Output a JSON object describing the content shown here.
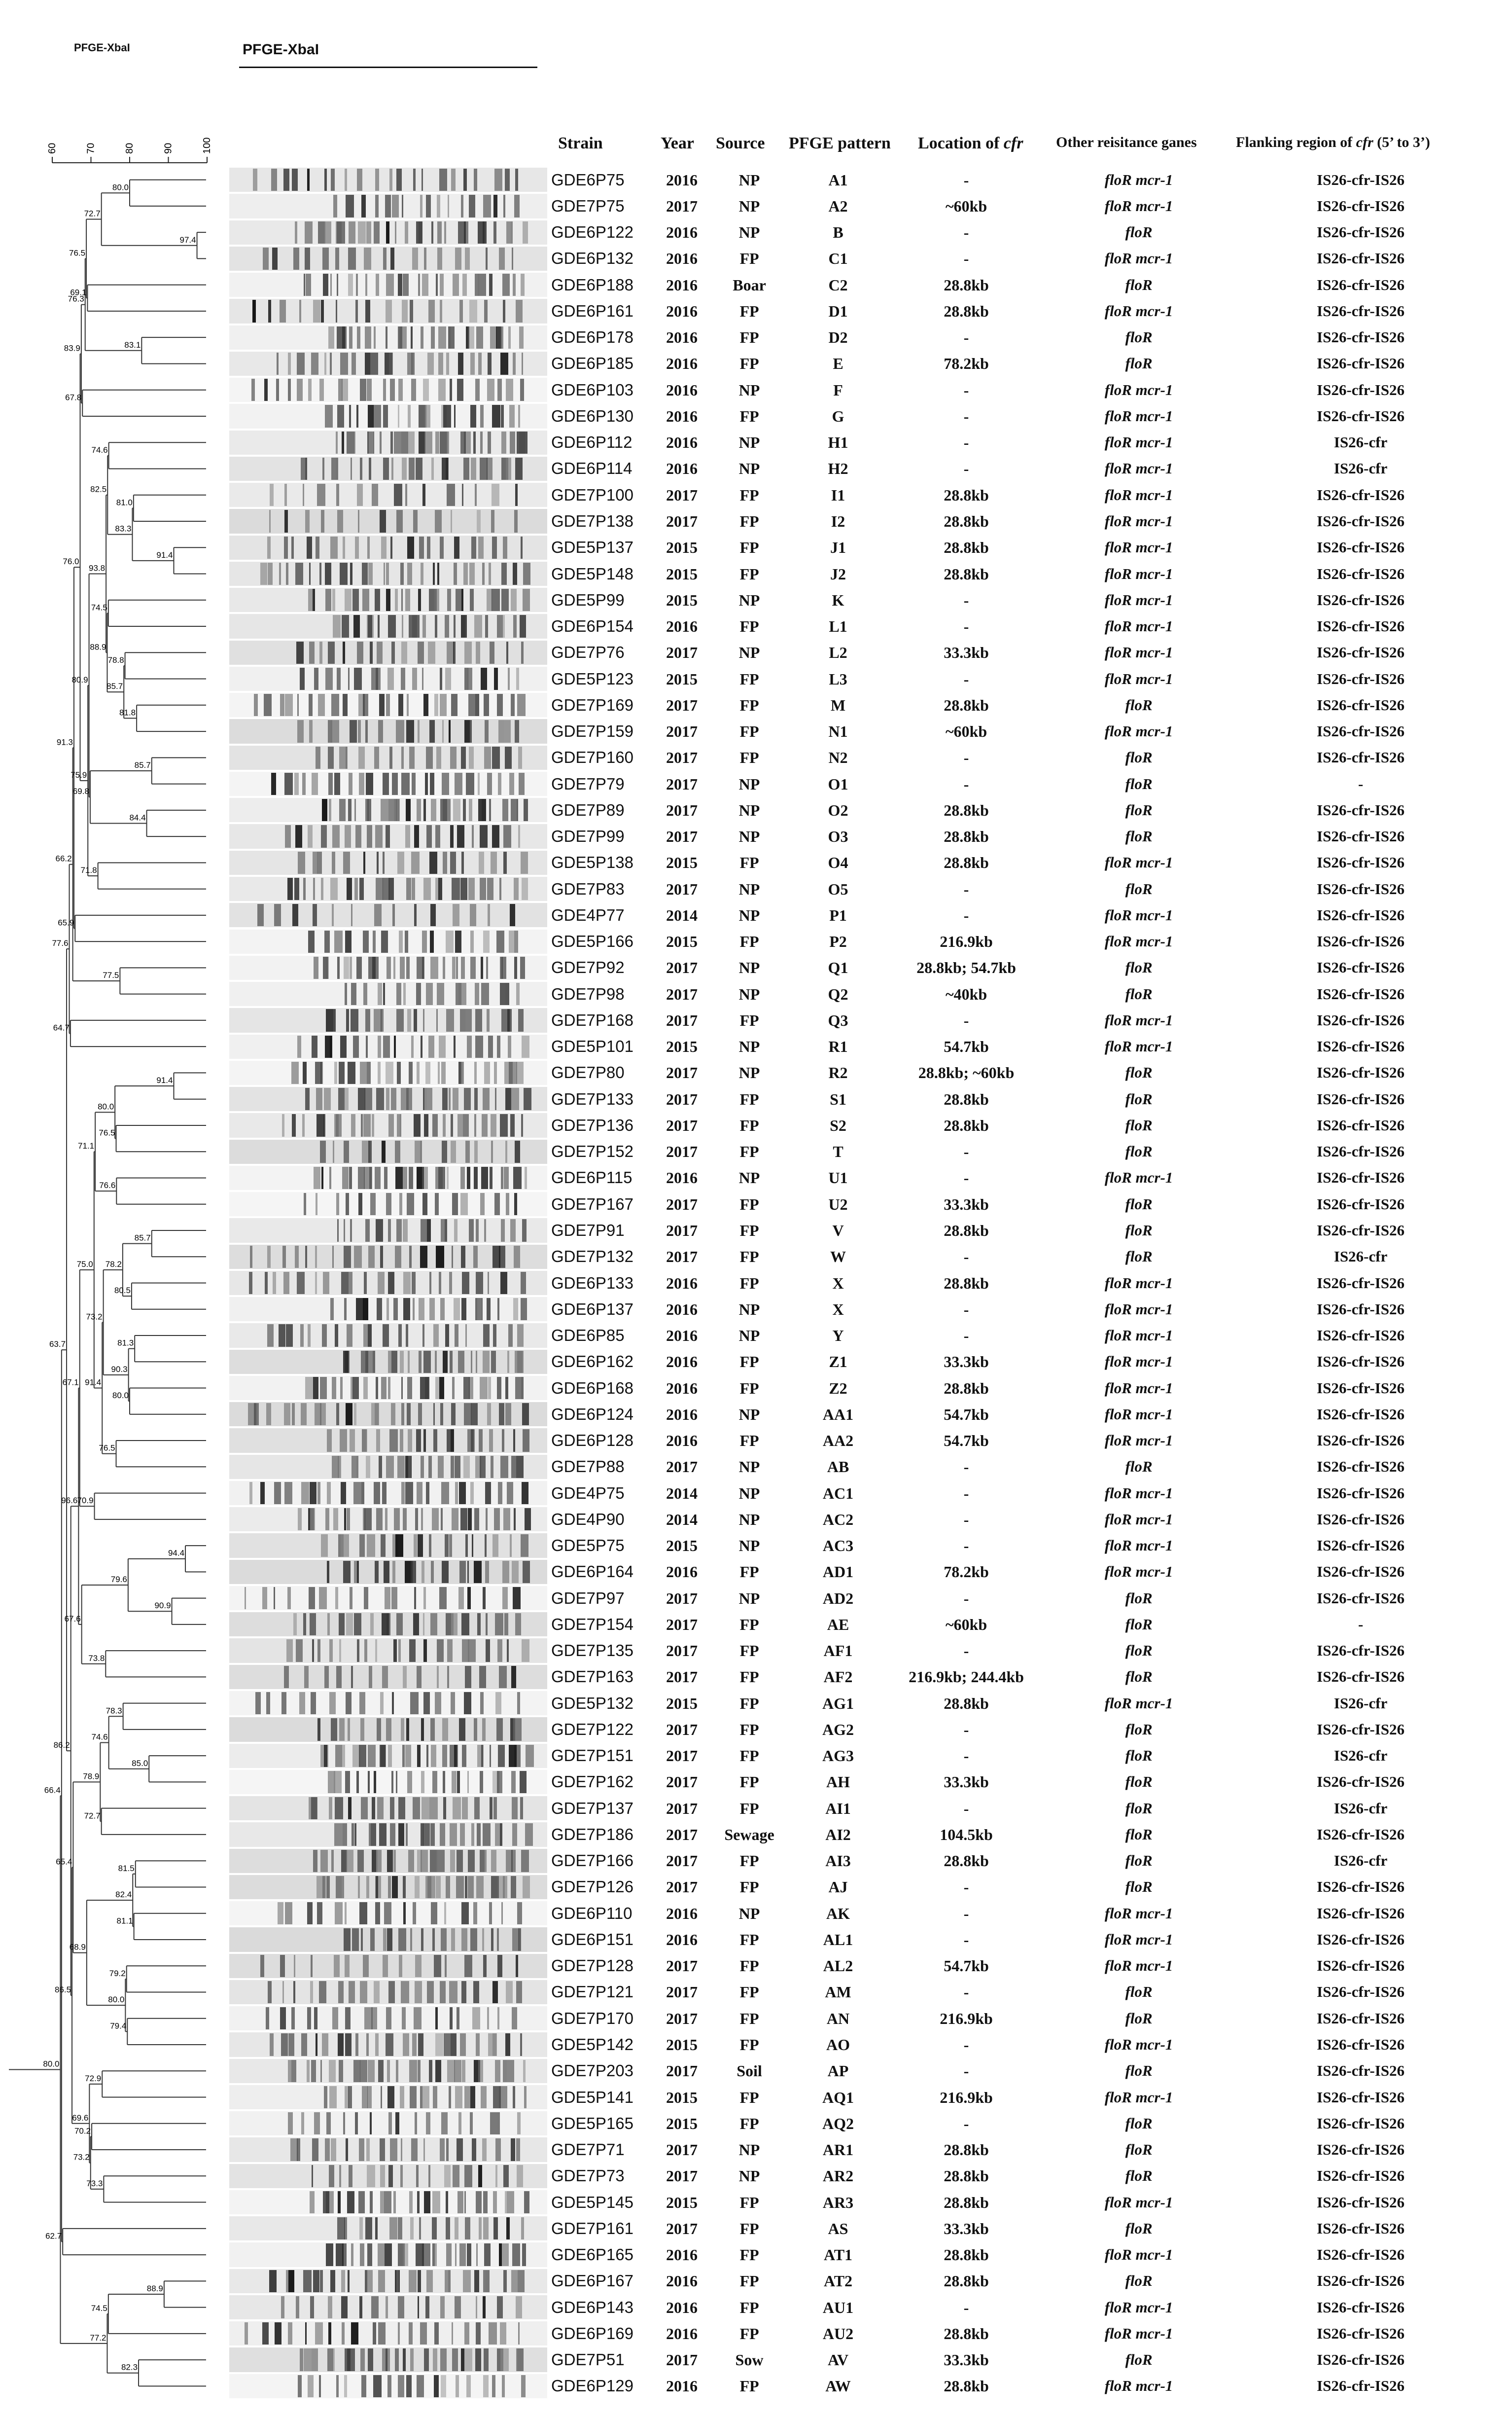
{
  "labels": {
    "top_left": "PFGE-XbaI",
    "top_title": "PFGE-XbaI"
  },
  "scale": {
    "ticks": [
      "60",
      "70",
      "80",
      "90",
      "100"
    ]
  },
  "headers": {
    "strain": "Strain",
    "year": "Year",
    "source": "Source",
    "pattern": "PFGE pattern",
    "location": "Location of ",
    "location_em": "cfr",
    "resistance": "Other reisitance ganes",
    "flank": "Flanking region of ",
    "flank_em": "cfr",
    "flank_tail": " (5’ to 3’)"
  },
  "rows": [
    {
      "strain": "GDE6P75",
      "year": "2016",
      "source": "NP",
      "pattern": "A1",
      "location": "-",
      "resistance": "floR mcr-1",
      "flank": "IS26-cfr-IS26"
    },
    {
      "strain": "GDE7P75",
      "year": "2017",
      "source": "NP",
      "pattern": "A2",
      "location": "~60kb",
      "resistance": "floR mcr-1",
      "flank": "IS26-cfr-IS26"
    },
    {
      "strain": "GDE6P122",
      "year": "2016",
      "source": "NP",
      "pattern": "B",
      "location": "-",
      "resistance": "floR",
      "flank": "IS26-cfr-IS26"
    },
    {
      "strain": "GDE6P132",
      "year": "2016",
      "source": "FP",
      "pattern": "C1",
      "location": "-",
      "resistance": "floR mcr-1",
      "flank": "IS26-cfr-IS26"
    },
    {
      "strain": "GDE6P188",
      "year": "2016",
      "source": "Boar",
      "pattern": "C2",
      "location": "28.8kb",
      "resistance": "floR",
      "flank": "IS26-cfr-IS26"
    },
    {
      "strain": "GDE6P161",
      "year": "2016",
      "source": "FP",
      "pattern": "D1",
      "location": "28.8kb",
      "resistance": "floR mcr-1",
      "flank": "IS26-cfr-IS26"
    },
    {
      "strain": "GDE6P178",
      "year": "2016",
      "source": "FP",
      "pattern": "D2",
      "location": "-",
      "resistance": "floR",
      "flank": "IS26-cfr-IS26"
    },
    {
      "strain": "GDE6P185",
      "year": "2016",
      "source": "FP",
      "pattern": "E",
      "location": "78.2kb",
      "resistance": "floR",
      "flank": "IS26-cfr-IS26"
    },
    {
      "strain": "GDE6P103",
      "year": "2016",
      "source": "NP",
      "pattern": "F",
      "location": "-",
      "resistance": "floR mcr-1",
      "flank": "IS26-cfr-IS26"
    },
    {
      "strain": "GDE6P130",
      "year": "2016",
      "source": "FP",
      "pattern": "G",
      "location": "-",
      "resistance": "floR mcr-1",
      "flank": "IS26-cfr-IS26"
    },
    {
      "strain": "GDE6P112",
      "year": "2016",
      "source": "NP",
      "pattern": "H1",
      "location": "-",
      "resistance": "floR mcr-1",
      "flank": "IS26-cfr"
    },
    {
      "strain": "GDE6P114",
      "year": "2016",
      "source": "NP",
      "pattern": "H2",
      "location": "-",
      "resistance": "floR mcr-1",
      "flank": "IS26-cfr"
    },
    {
      "strain": "GDE7P100",
      "year": "2017",
      "source": "FP",
      "pattern": "I1",
      "location": "28.8kb",
      "resistance": "floR mcr-1",
      "flank": "IS26-cfr-IS26"
    },
    {
      "strain": "GDE7P138",
      "year": "2017",
      "source": "FP",
      "pattern": "I2",
      "location": "28.8kb",
      "resistance": "floR mcr-1",
      "flank": "IS26-cfr-IS26"
    },
    {
      "strain": "GDE5P137",
      "year": "2015",
      "source": "FP",
      "pattern": "J1",
      "location": "28.8kb",
      "resistance": "floR mcr-1",
      "flank": "IS26-cfr-IS26"
    },
    {
      "strain": "GDE5P148",
      "year": "2015",
      "source": "FP",
      "pattern": "J2",
      "location": "28.8kb",
      "resistance": "floR mcr-1",
      "flank": "IS26-cfr-IS26"
    },
    {
      "strain": "GDE5P99",
      "year": "2015",
      "source": "NP",
      "pattern": "K",
      "location": "-",
      "resistance": "floR mcr-1",
      "flank": "IS26-cfr-IS26"
    },
    {
      "strain": "GDE6P154",
      "year": "2016",
      "source": "FP",
      "pattern": "L1",
      "location": "-",
      "resistance": "floR mcr-1",
      "flank": "IS26-cfr-IS26"
    },
    {
      "strain": "GDE7P76",
      "year": "2017",
      "source": "NP",
      "pattern": "L2",
      "location": "33.3kb",
      "resistance": "floR mcr-1",
      "flank": "IS26-cfr-IS26"
    },
    {
      "strain": "GDE5P123",
      "year": "2015",
      "source": "FP",
      "pattern": "L3",
      "location": "-",
      "resistance": "floR mcr-1",
      "flank": "IS26-cfr-IS26"
    },
    {
      "strain": "GDE7P169",
      "year": "2017",
      "source": "FP",
      "pattern": "M",
      "location": "28.8kb",
      "resistance": "floR",
      "flank": "IS26-cfr-IS26"
    },
    {
      "strain": "GDE7P159",
      "year": "2017",
      "source": "FP",
      "pattern": "N1",
      "location": "~60kb",
      "resistance": "floR mcr-1",
      "flank": "IS26-cfr-IS26"
    },
    {
      "strain": "GDE7P160",
      "year": "2017",
      "source": "FP",
      "pattern": "N2",
      "location": "-",
      "resistance": "floR",
      "flank": "IS26-cfr-IS26"
    },
    {
      "strain": "GDE7P79",
      "year": "2017",
      "source": "NP",
      "pattern": "O1",
      "location": "-",
      "resistance": "floR",
      "flank": "-"
    },
    {
      "strain": "GDE7P89",
      "year": "2017",
      "source": "NP",
      "pattern": "O2",
      "location": "28.8kb",
      "resistance": "floR",
      "flank": "IS26-cfr-IS26"
    },
    {
      "strain": "GDE7P99",
      "year": "2017",
      "source": "NP",
      "pattern": "O3",
      "location": "28.8kb",
      "resistance": "floR",
      "flank": "IS26-cfr-IS26"
    },
    {
      "strain": "GDE5P138",
      "year": "2015",
      "source": "FP",
      "pattern": "O4",
      "location": "28.8kb",
      "resistance": "floR mcr-1",
      "flank": "IS26-cfr-IS26"
    },
    {
      "strain": "GDE7P83",
      "year": "2017",
      "source": "NP",
      "pattern": "O5",
      "location": "-",
      "resistance": "floR",
      "flank": "IS26-cfr-IS26"
    },
    {
      "strain": "GDE4P77",
      "year": "2014",
      "source": "NP",
      "pattern": "P1",
      "location": "-",
      "resistance": "floR mcr-1",
      "flank": "IS26-cfr-IS26"
    },
    {
      "strain": "GDE5P166",
      "year": "2015",
      "source": "FP",
      "pattern": "P2",
      "location": "216.9kb",
      "resistance": "floR mcr-1",
      "flank": "IS26-cfr-IS26"
    },
    {
      "strain": "GDE7P92",
      "year": "2017",
      "source": "NP",
      "pattern": "Q1",
      "location": "28.8kb; 54.7kb",
      "resistance": "floR",
      "flank": "IS26-cfr-IS26"
    },
    {
      "strain": "GDE7P98",
      "year": "2017",
      "source": "NP",
      "pattern": "Q2",
      "location": "~40kb",
      "resistance": "floR",
      "flank": "IS26-cfr-IS26"
    },
    {
      "strain": "GDE7P168",
      "year": "2017",
      "source": "FP",
      "pattern": "Q3",
      "location": "-",
      "resistance": "floR mcr-1",
      "flank": "IS26-cfr-IS26"
    },
    {
      "strain": "GDE5P101",
      "year": "2015",
      "source": "NP",
      "pattern": "R1",
      "location": "54.7kb",
      "resistance": "floR mcr-1",
      "flank": "IS26-cfr-IS26"
    },
    {
      "strain": "GDE7P80",
      "year": "2017",
      "source": "NP",
      "pattern": "R2",
      "location": "28.8kb; ~60kb",
      "resistance": "floR",
      "flank": "IS26-cfr-IS26"
    },
    {
      "strain": "GDE7P133",
      "year": "2017",
      "source": "FP",
      "pattern": "S1",
      "location": "28.8kb",
      "resistance": "floR",
      "flank": "IS26-cfr-IS26"
    },
    {
      "strain": "GDE7P136",
      "year": "2017",
      "source": "FP",
      "pattern": "S2",
      "location": "28.8kb",
      "resistance": "floR",
      "flank": "IS26-cfr-IS26"
    },
    {
      "strain": "GDE7P152",
      "year": "2017",
      "source": "FP",
      "pattern": "T",
      "location": "-",
      "resistance": "floR",
      "flank": "IS26-cfr-IS26"
    },
    {
      "strain": "GDE6P115",
      "year": "2016",
      "source": "NP",
      "pattern": "U1",
      "location": "-",
      "resistance": "floR mcr-1",
      "flank": "IS26-cfr-IS26"
    },
    {
      "strain": "GDE7P167",
      "year": "2017",
      "source": "FP",
      "pattern": "U2",
      "location": "33.3kb",
      "resistance": "floR",
      "flank": "IS26-cfr-IS26"
    },
    {
      "strain": "GDE7P91",
      "year": "2017",
      "source": "FP",
      "pattern": "V",
      "location": "28.8kb",
      "resistance": "floR",
      "flank": "IS26-cfr-IS26"
    },
    {
      "strain": "GDE7P132",
      "year": "2017",
      "source": "FP",
      "pattern": "W",
      "location": "-",
      "resistance": "floR",
      "flank": "IS26-cfr"
    },
    {
      "strain": "GDE6P133",
      "year": "2016",
      "source": "FP",
      "pattern": "X",
      "location": "28.8kb",
      "resistance": "floR mcr-1",
      "flank": "IS26-cfr-IS26"
    },
    {
      "strain": "GDE6P137",
      "year": "2016",
      "source": "NP",
      "pattern": "X",
      "location": "-",
      "resistance": "floR mcr-1",
      "flank": "IS26-cfr-IS26"
    },
    {
      "strain": "GDE6P85",
      "year": "2016",
      "source": "NP",
      "pattern": "Y",
      "location": "-",
      "resistance": "floR mcr-1",
      "flank": "IS26-cfr-IS26"
    },
    {
      "strain": "GDE6P162",
      "year": "2016",
      "source": "FP",
      "pattern": "Z1",
      "location": "33.3kb",
      "resistance": "floR mcr-1",
      "flank": "IS26-cfr-IS26"
    },
    {
      "strain": "GDE6P168",
      "year": "2016",
      "source": "FP",
      "pattern": "Z2",
      "location": "28.8kb",
      "resistance": "floR mcr-1",
      "flank": "IS26-cfr-IS26"
    },
    {
      "strain": "GDE6P124",
      "year": "2016",
      "source": "NP",
      "pattern": "AA1",
      "location": "54.7kb",
      "resistance": "floR mcr-1",
      "flank": "IS26-cfr-IS26"
    },
    {
      "strain": "GDE6P128",
      "year": "2016",
      "source": "FP",
      "pattern": "AA2",
      "location": "54.7kb",
      "resistance": "floR mcr-1",
      "flank": "IS26-cfr-IS26"
    },
    {
      "strain": "GDE7P88",
      "year": "2017",
      "source": "NP",
      "pattern": "AB",
      "location": "-",
      "resistance": "floR",
      "flank": "IS26-cfr-IS26"
    },
    {
      "strain": "GDE4P75",
      "year": "2014",
      "source": "NP",
      "pattern": "AC1",
      "location": "-",
      "resistance": "floR mcr-1",
      "flank": "IS26-cfr-IS26"
    },
    {
      "strain": "GDE4P90",
      "year": "2014",
      "source": "NP",
      "pattern": "AC2",
      "location": "-",
      "resistance": "floR mcr-1",
      "flank": "IS26-cfr-IS26"
    },
    {
      "strain": "GDE5P75",
      "year": "2015",
      "source": "NP",
      "pattern": "AC3",
      "location": "-",
      "resistance": "floR mcr-1",
      "flank": "IS26-cfr-IS26"
    },
    {
      "strain": "GDE6P164",
      "year": "2016",
      "source": "FP",
      "pattern": "AD1",
      "location": "78.2kb",
      "resistance": "floR mcr-1",
      "flank": "IS26-cfr-IS26"
    },
    {
      "strain": "GDE7P97",
      "year": "2017",
      "source": "NP",
      "pattern": "AD2",
      "location": "-",
      "resistance": "floR",
      "flank": "IS26-cfr-IS26"
    },
    {
      "strain": "GDE7P154",
      "year": "2017",
      "source": "FP",
      "pattern": "AE",
      "location": "~60kb",
      "resistance": "floR",
      "flank": "-"
    },
    {
      "strain": "GDE7P135",
      "year": "2017",
      "source": "FP",
      "pattern": "AF1",
      "location": "-",
      "resistance": "floR",
      "flank": "IS26-cfr-IS26"
    },
    {
      "strain": "GDE7P163",
      "year": "2017",
      "source": "FP",
      "pattern": "AF2",
      "location": "216.9kb; 244.4kb",
      "resistance": "floR",
      "flank": "IS26-cfr-IS26"
    },
    {
      "strain": "GDE5P132",
      "year": "2015",
      "source": "FP",
      "pattern": "AG1",
      "location": "28.8kb",
      "resistance": "floR mcr-1",
      "flank": "IS26-cfr"
    },
    {
      "strain": "GDE7P122",
      "year": "2017",
      "source": "FP",
      "pattern": "AG2",
      "location": "-",
      "resistance": "floR",
      "flank": "IS26-cfr-IS26"
    },
    {
      "strain": "GDE7P151",
      "year": "2017",
      "source": "FP",
      "pattern": "AG3",
      "location": "-",
      "resistance": "floR",
      "flank": "IS26-cfr"
    },
    {
      "strain": "GDE7P162",
      "year": "2017",
      "source": "FP",
      "pattern": "AH",
      "location": "33.3kb",
      "resistance": "floR",
      "flank": "IS26-cfr-IS26"
    },
    {
      "strain": "GDE7P137",
      "year": "2017",
      "source": "FP",
      "pattern": "AI1",
      "location": "-",
      "resistance": "floR",
      "flank": "IS26-cfr"
    },
    {
      "strain": "GDE7P186",
      "year": "2017",
      "source": "Sewage",
      "pattern": "AI2",
      "location": "104.5kb",
      "resistance": "floR",
      "flank": "IS26-cfr-IS26"
    },
    {
      "strain": "GDE7P166",
      "year": "2017",
      "source": "FP",
      "pattern": "AI3",
      "location": "28.8kb",
      "resistance": "floR",
      "flank": "IS26-cfr"
    },
    {
      "strain": "GDE7P126",
      "year": "2017",
      "source": "FP",
      "pattern": "AJ",
      "location": "-",
      "resistance": "floR",
      "flank": "IS26-cfr-IS26"
    },
    {
      "strain": "GDE6P110",
      "year": "2016",
      "source": "NP",
      "pattern": "AK",
      "location": "-",
      "resistance": "floR mcr-1",
      "flank": "IS26-cfr-IS26"
    },
    {
      "strain": "GDE6P151",
      "year": "2016",
      "source": "FP",
      "pattern": "AL1",
      "location": "-",
      "resistance": "floR mcr-1",
      "flank": "IS26-cfr-IS26"
    },
    {
      "strain": "GDE7P128",
      "year": "2017",
      "source": "FP",
      "pattern": "AL2",
      "location": "54.7kb",
      "resistance": "floR mcr-1",
      "flank": "IS26-cfr-IS26"
    },
    {
      "strain": "GDE7P121",
      "year": "2017",
      "source": "FP",
      "pattern": "AM",
      "location": "-",
      "resistance": "floR",
      "flank": "IS26-cfr-IS26"
    },
    {
      "strain": "GDE7P170",
      "year": "2017",
      "source": "FP",
      "pattern": "AN",
      "location": "216.9kb",
      "resistance": "floR",
      "flank": "IS26-cfr-IS26"
    },
    {
      "strain": "GDE5P142",
      "year": "2015",
      "source": "FP",
      "pattern": "AO",
      "location": "-",
      "resistance": "floR mcr-1",
      "flank": "IS26-cfr-IS26"
    },
    {
      "strain": "GDE7P203",
      "year": "2017",
      "source": "Soil",
      "pattern": "AP",
      "location": "-",
      "resistance": "floR",
      "flank": "IS26-cfr-IS26"
    },
    {
      "strain": "GDE5P141",
      "year": "2015",
      "source": "FP",
      "pattern": "AQ1",
      "location": "216.9kb",
      "resistance": "floR mcr-1",
      "flank": "IS26-cfr-IS26"
    },
    {
      "strain": "GDE5P165",
      "year": "2015",
      "source": "FP",
      "pattern": "AQ2",
      "location": "-",
      "resistance": "floR",
      "flank": "IS26-cfr-IS26"
    },
    {
      "strain": "GDE7P71",
      "year": "2017",
      "source": "NP",
      "pattern": "AR1",
      "location": "28.8kb",
      "resistance": "floR",
      "flank": "IS26-cfr-IS26"
    },
    {
      "strain": "GDE7P73",
      "year": "2017",
      "source": "NP",
      "pattern": "AR2",
      "location": "28.8kb",
      "resistance": "floR",
      "flank": "IS26-cfr-IS26"
    },
    {
      "strain": "GDE5P145",
      "year": "2015",
      "source": "FP",
      "pattern": "AR3",
      "location": "28.8kb",
      "resistance": "floR mcr-1",
      "flank": "IS26-cfr-IS26"
    },
    {
      "strain": "GDE7P161",
      "year": "2017",
      "source": "FP",
      "pattern": "AS",
      "location": "33.3kb",
      "resistance": "floR",
      "flank": "IS26-cfr-IS26"
    },
    {
      "strain": "GDE6P165",
      "year": "2016",
      "source": "FP",
      "pattern": "AT1",
      "location": "28.8kb",
      "resistance": "floR mcr-1",
      "flank": "IS26-cfr-IS26"
    },
    {
      "strain": "GDE6P167",
      "year": "2016",
      "source": "FP",
      "pattern": "AT2",
      "location": "28.8kb",
      "resistance": "floR",
      "flank": "IS26-cfr-IS26"
    },
    {
      "strain": "GDE6P143",
      "year": "2016",
      "source": "FP",
      "pattern": "AU1",
      "location": "-",
      "resistance": "floR mcr-1",
      "flank": "IS26-cfr-IS26"
    },
    {
      "strain": "GDE6P169",
      "year": "2016",
      "source": "FP",
      "pattern": "AU2",
      "location": "28.8kb",
      "resistance": "floR mcr-1",
      "flank": "IS26-cfr-IS26"
    },
    {
      "strain": "GDE7P51",
      "year": "2017",
      "source": "Sow",
      "pattern": "AV",
      "location": "33.3kb",
      "resistance": "floR",
      "flank": "IS26-cfr-IS26"
    },
    {
      "strain": "GDE6P129",
      "year": "2016",
      "source": "FP",
      "pattern": "AW",
      "location": "28.8kb",
      "resistance": "floR mcr-1",
      "flank": "IS26-cfr-IS26"
    }
  ],
  "similarity": [
    "80.0",
    "69.1",
    "67.8",
    "81.0",
    "74.5",
    "81.8",
    "84.4",
    "65.9",
    "64.7",
    "76.5",
    "85.7",
    "81.3",
    "76.5",
    "94.4",
    "73.8",
    "85.0",
    "81.5",
    "79.2",
    "72.9",
    "73.3",
    "88.9",
    "97.4",
    "83.1",
    "82.3",
    "74.6",
    "91.4",
    "78.8",
    "85.7",
    "71.8",
    "77.5",
    "91.4",
    "76.6",
    "80.5",
    "80.0",
    "70.9",
    "90.9",
    "78.3",
    "72.7",
    "81.1",
    "79.4",
    "70.2",
    "62.7",
    "79.6",
    "74.5",
    "69.8",
    "82.4",
    "83.3",
    "78.2",
    "72.7",
    "90.3",
    "80.0",
    "68.9",
    "85.7",
    "74.6",
    "73.2",
    "80.0",
    "71.1",
    "88.9",
    "82.5",
    "77.2",
    "67.6",
    "93.8",
    "91.4",
    "78.9",
    "75.0",
    "67.1",
    "73.2",
    "69.6",
    "80.9",
    "76.5",
    "75.9",
    "65.4",
    "76.3",
    "83.9",
    "76.0",
    "96.6",
    "91.3",
    "66.2",
    "86.5",
    "77.6",
    "86.2",
    "63.7",
    "66.4"
  ]
}
